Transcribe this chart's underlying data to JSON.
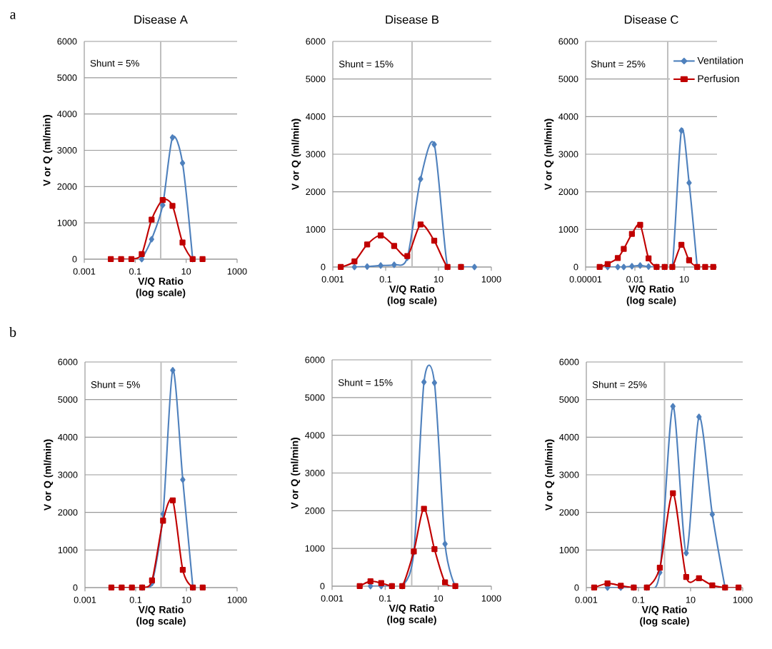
{
  "chart_data": [
    {
      "type": "line",
      "title": "Disease A",
      "xlabel": "V/Q Ratio (log scale)",
      "ylabel": "V or Q (ml/min)",
      "log": "x",
      "grid": "y",
      "xlim": [
        0.001,
        1000
      ],
      "xticks": [
        0.001,
        0.1,
        10,
        1000
      ],
      "ylim": [
        0,
        6000
      ],
      "yticks": [
        0,
        1000,
        2000,
        3000,
        4000,
        5000,
        6000
      ],
      "ref_lines": [
        {
          "axis": "x",
          "value": 1,
          "color": "#bfbfbf"
        }
      ],
      "annotations": [
        "Shunt = 5%",
        "a"
      ],
      "series": [
        {
          "color": "#4f81bd",
          "marker": "diamond",
          "x": [
            0.18,
            0.44,
            1.2,
            2.9,
            7.2,
            18
          ],
          "values": [
            0,
            550,
            1490,
            3350,
            2650,
            0
          ]
        },
        {
          "color": "#c00000",
          "marker": "square",
          "x": [
            0.011,
            0.028,
            0.071,
            0.18,
            0.44,
            1.2,
            2.9,
            7.2,
            18,
            44
          ],
          "values": [
            0,
            0,
            0,
            140,
            1090,
            1630,
            1470,
            460,
            0,
            0
          ]
        }
      ]
    },
    {
      "type": "line",
      "title": "Disease B",
      "xlabel": "V/Q Ratio (log scale)",
      "ylabel": "V or Q (ml/min)",
      "log": "x",
      "grid": "y",
      "xlim": [
        0.001,
        1000
      ],
      "xticks": [
        0.001,
        0.1,
        10,
        1000
      ],
      "ylim": [
        0,
        6000
      ],
      "yticks": [
        0,
        1000,
        2000,
        3000,
        4000,
        5000,
        6000
      ],
      "ref_lines": [
        {
          "axis": "x",
          "value": 1,
          "color": "#bfbfbf"
        }
      ],
      "annotations": [
        "Shunt = 15%"
      ],
      "series": [
        {
          "color": "#4f81bd",
          "marker": "diamond",
          "x": [
            0.0066,
            0.02,
            0.065,
            0.21,
            0.66,
            2.1,
            6.9,
            22,
            71,
            230
          ],
          "values": [
            0,
            10,
            40,
            60,
            250,
            2340,
            3260,
            0,
            0,
            0
          ]
        },
        {
          "color": "#c00000",
          "marker": "square",
          "x": [
            0.002,
            0.0066,
            0.02,
            0.065,
            0.21,
            0.66,
            2.1,
            6.9,
            22,
            71
          ],
          "values": [
            0,
            150,
            600,
            840,
            560,
            290,
            1130,
            700,
            0,
            0
          ]
        }
      ]
    },
    {
      "type": "line",
      "title": "Disease C",
      "xlabel": "V/Q Ratio (log scale)",
      "ylabel": "V or Q (ml/min)",
      "log": "x",
      "grid": "y",
      "legend": "top right",
      "xlim": [
        1e-05,
        1000
      ],
      "xticks": [
        {
          "value": 1e-05,
          "label": "0.00001"
        },
        0.01,
        10
      ],
      "ylim": [
        0,
        6000
      ],
      "yticks": [
        0,
        1000,
        2000,
        3000,
        4000,
        5000,
        6000
      ],
      "ref_lines": [
        {
          "axis": "x",
          "value": 1,
          "color": "#bfbfbf"
        }
      ],
      "annotations": [
        "Shunt = 25%"
      ],
      "series": [
        {
          "name": "Ventilation",
          "color": "#4f81bd",
          "marker": "diamond",
          "x": [
            0.00022,
            0.00091,
            0.0021,
            0.0066,
            0.021,
            0.068,
            0.21,
            0.65,
            1.9,
            6.8,
            20,
            62
          ],
          "values": [
            0,
            0,
            0,
            20,
            40,
            10,
            0,
            0,
            0,
            3630,
            2240,
            0
          ]
        },
        {
          "name": "Perfusion",
          "color": "#c00000",
          "marker": "square",
          "x": [
            7.2e-05,
            0.00022,
            0.00091,
            0.0021,
            0.0066,
            0.021,
            0.068,
            0.21,
            0.65,
            1.9,
            6.8,
            20,
            62,
            190,
            590
          ],
          "values": [
            0,
            80,
            240,
            480,
            880,
            1120,
            230,
            0,
            0,
            0,
            590,
            180,
            0,
            0,
            0
          ]
        }
      ]
    },
    {
      "type": "line",
      "xlabel": "V/Q Ratio (log scale)",
      "ylabel": "V or Q (ml/min)",
      "log": "x",
      "grid": "y",
      "xlim": [
        0.001,
        1000
      ],
      "xticks": [
        0.001,
        0.1,
        10,
        1000
      ],
      "ylim": [
        0,
        6000
      ],
      "yticks": [
        0,
        1000,
        2000,
        3000,
        4000,
        5000,
        6000
      ],
      "ref_lines": [
        {
          "axis": "x",
          "value": 1,
          "color": "#bfbfbf"
        }
      ],
      "annotations": [
        "Shunt = 5%",
        "b"
      ],
      "series": [
        {
          "color": "#4f81bd",
          "marker": "diamond",
          "x": [
            0.18,
            0.44,
            1.2,
            2.9,
            7.2,
            18
          ],
          "values": [
            0,
            120,
            1960,
            5780,
            2870,
            0
          ]
        },
        {
          "color": "#c00000",
          "marker": "square",
          "x": [
            0.011,
            0.028,
            0.071,
            0.18,
            0.44,
            1.2,
            2.9,
            7.2,
            18,
            44
          ],
          "values": [
            0,
            0,
            0,
            0,
            190,
            1780,
            2320,
            470,
            0,
            0
          ]
        }
      ]
    },
    {
      "type": "line",
      "xlabel": "V/Q Ratio (log scale)",
      "ylabel": "V or Q (ml/min)",
      "log": "x",
      "grid": "y",
      "xlim": [
        0.001,
        1000
      ],
      "xticks": [
        0.001,
        0.1,
        10,
        1000
      ],
      "ylim": [
        0,
        6000
      ],
      "yticks": [
        0,
        1000,
        2000,
        3000,
        4000,
        5000,
        6000
      ],
      "ref_lines": [
        {
          "axis": "x",
          "value": 1,
          "color": "#bfbfbf"
        }
      ],
      "annotations": [
        "Shunt = 15%"
      ],
      "series": [
        {
          "color": "#4f81bd",
          "marker": "diamond",
          "x": [
            0.028,
            0.071,
            0.18,
            0.44,
            1.2,
            2.9,
            7.2,
            18,
            44
          ],
          "values": [
            0,
            0,
            0,
            0,
            900,
            5410,
            5390,
            1120,
            0
          ]
        },
        {
          "color": "#c00000",
          "marker": "square",
          "x": [
            0.011,
            0.028,
            0.071,
            0.18,
            0.44,
            1.2,
            2.9,
            7.2,
            18,
            44
          ],
          "values": [
            0,
            130,
            80,
            0,
            0,
            920,
            2050,
            980,
            100,
            0
          ]
        }
      ]
    },
    {
      "type": "line",
      "xlabel": "V/Q Ratio (log scale)",
      "ylabel": "V or Q (ml/min)",
      "log": "x",
      "grid": "y",
      "xlim": [
        0.001,
        1000
      ],
      "xticks": [
        0.001,
        0.1,
        10,
        1000
      ],
      "ylim": [
        0,
        6000
      ],
      "yticks": [
        0,
        1000,
        2000,
        3000,
        4000,
        5000,
        6000
      ],
      "ref_lines": [
        {
          "axis": "x",
          "value": 1,
          "color": "#bfbfbf"
        }
      ],
      "annotations": [
        "Shunt = 25%"
      ],
      "series": [
        {
          "color": "#4f81bd",
          "marker": "diamond",
          "x": [
            0.0065,
            0.021,
            0.066,
            0.21,
            0.66,
            2.1,
            6.8,
            21,
            68,
            210
          ],
          "values": [
            0,
            0,
            0,
            0,
            400,
            4820,
            920,
            4540,
            1950,
            0
          ]
        },
        {
          "color": "#c00000",
          "marker": "square",
          "x": [
            0.002,
            0.0065,
            0.021,
            0.066,
            0.21,
            0.66,
            2.1,
            6.8,
            21,
            68,
            210,
            690
          ],
          "values": [
            0,
            110,
            50,
            0,
            0,
            530,
            2510,
            280,
            250,
            60,
            0,
            0
          ]
        }
      ]
    }
  ]
}
